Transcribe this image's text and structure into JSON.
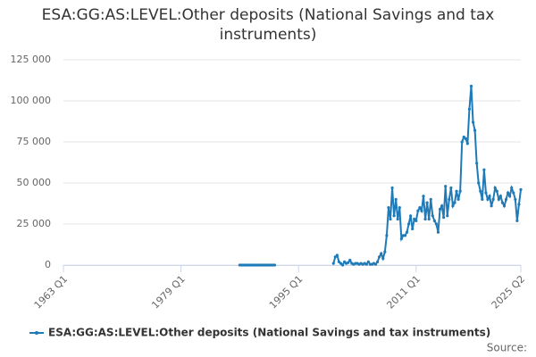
{
  "chart_data": {
    "type": "line",
    "title": "ESA:GG:AS:LEVEL:Other deposits (National Savings and tax instruments)",
    "source": "Source:",
    "x": [
      "1987 Q1",
      "1987 Q2",
      "1987 Q3",
      "1987 Q4",
      "1988 Q1",
      "1988 Q2",
      "1988 Q3",
      "1988 Q4",
      "1989 Q1",
      "1989 Q2",
      "1989 Q3",
      "1989 Q4",
      "1990 Q1",
      "1990 Q2",
      "1990 Q3",
      "1990 Q4",
      "1991 Q1",
      "1991 Q2",
      "1991 Q3",
      "1991 Q4",
      "1992 Q1",
      "1999 Q4",
      "2000 Q1",
      "2000 Q2",
      "2000 Q3",
      "2000 Q4",
      "2001 Q1",
      "2001 Q2",
      "2001 Q3",
      "2001 Q4",
      "2002 Q1",
      "2002 Q2",
      "2002 Q3",
      "2002 Q4",
      "2003 Q1",
      "2003 Q2",
      "2003 Q3",
      "2003 Q4",
      "2004 Q1",
      "2004 Q2",
      "2004 Q3",
      "2004 Q4",
      "2005 Q1",
      "2005 Q2",
      "2005 Q3",
      "2005 Q4",
      "2006 Q1",
      "2006 Q2",
      "2006 Q3",
      "2006 Q4",
      "2007 Q1",
      "2007 Q2",
      "2007 Q3",
      "2007 Q4",
      "2008 Q1",
      "2008 Q2",
      "2008 Q3",
      "2008 Q4",
      "2009 Q1",
      "2009 Q2",
      "2009 Q3",
      "2009 Q4",
      "2010 Q1",
      "2010 Q2",
      "2010 Q3",
      "2010 Q4",
      "2011 Q1",
      "2011 Q2",
      "2011 Q3",
      "2011 Q4",
      "2012 Q1",
      "2012 Q2",
      "2012 Q3",
      "2012 Q4",
      "2013 Q1",
      "2013 Q2",
      "2013 Q3",
      "2013 Q4",
      "2014 Q1",
      "2014 Q2",
      "2014 Q3",
      "2014 Q4",
      "2015 Q1",
      "2015 Q2",
      "2015 Q3",
      "2015 Q4",
      "2016 Q1",
      "2016 Q2",
      "2016 Q3",
      "2016 Q4",
      "2017 Q1",
      "2017 Q2",
      "2017 Q3",
      "2017 Q4",
      "2018 Q1",
      "2018 Q2",
      "2018 Q3",
      "2018 Q4",
      "2019 Q1",
      "2019 Q2",
      "2019 Q3",
      "2019 Q4",
      "2020 Q1",
      "2020 Q2",
      "2020 Q3",
      "2020 Q4",
      "2021 Q1",
      "2021 Q2",
      "2021 Q3",
      "2021 Q4",
      "2022 Q1",
      "2022 Q2",
      "2022 Q3",
      "2022 Q4",
      "2023 Q1",
      "2023 Q2",
      "2023 Q3",
      "2023 Q4",
      "2024 Q1",
      "2024 Q2",
      "2024 Q3",
      "2024 Q4",
      "2025 Q1",
      "2025 Q2"
    ],
    "series": [
      {
        "name": "ESA:GG:AS:LEVEL:Other deposits (National Savings and tax instruments)",
        "color": "#1f7ab8",
        "values": [
          0,
          0,
          0,
          0,
          0,
          0,
          0,
          0,
          0,
          0,
          0,
          0,
          0,
          0,
          0,
          0,
          0,
          0,
          0,
          0,
          null,
          1000,
          5000,
          6000,
          2000,
          1000,
          0,
          2000,
          1000,
          1500,
          3000,
          1000,
          500,
          1000,
          1000,
          500,
          1000,
          500,
          1000,
          500,
          2000,
          500,
          500,
          1000,
          500,
          2000,
          5000,
          7000,
          4000,
          8000,
          18000,
          35000,
          28000,
          47000,
          30000,
          40000,
          28000,
          35000,
          16000,
          18000,
          18000,
          20000,
          25000,
          30000,
          22000,
          28000,
          27000,
          33000,
          35000,
          33000,
          42000,
          28000,
          38000,
          28000,
          40000,
          30000,
          27000,
          25000,
          20000,
          34000,
          36000,
          29000,
          48000,
          30000,
          40000,
          47000,
          36000,
          38000,
          45000,
          40000,
          45000,
          75000,
          78000,
          77000,
          74000,
          95000,
          109000,
          87000,
          82000,
          62000,
          50000,
          45000,
          40000,
          58000,
          44000,
          40000,
          42000,
          36000,
          40000,
          47000,
          45000,
          40000,
          42000,
          38000,
          36000,
          40000,
          44000,
          42000,
          47000,
          44000,
          40000,
          27000,
          37000,
          46000
        ]
      }
    ],
    "xlim": [
      "1963 Q1",
      "2025 Q2"
    ],
    "xticks": [
      "1963 Q1",
      "1979 Q1",
      "1995 Q1",
      "2011 Q1",
      "2025 Q2"
    ],
    "ylim": [
      0,
      125000
    ],
    "yticks": [
      0,
      {
        "value": 25000,
        "label": "25 000"
      },
      {
        "value": 50000,
        "label": "50 000"
      },
      {
        "value": 75000,
        "label": "75 000"
      },
      {
        "value": 100000,
        "label": "100 000"
      },
      {
        "value": 125000,
        "label": "125 000"
      }
    ],
    "grid": true
  }
}
